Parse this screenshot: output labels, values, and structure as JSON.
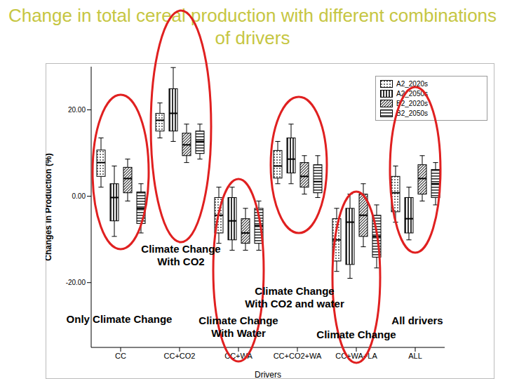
{
  "chart_data": {
    "type": "boxplot",
    "title": "Change in total cereal production with different combinations of drivers",
    "x_label": "Drivers",
    "y_label": "Changes in Production (%)",
    "categories": [
      "CC",
      "CC+CO2",
      "CC+WA",
      "CC+CO2+WA",
      "CC+WA+LA",
      "ALL"
    ],
    "ylim": [
      -35,
      30
    ],
    "yticks": [
      {
        "value": -20,
        "label": "-20.00"
      },
      {
        "value": 0,
        "label": "0.00"
      },
      {
        "value": 20,
        "label": "20.00"
      }
    ],
    "legend": "upper right",
    "annotations": [
      [
        "Only Climate Change"
      ],
      [
        "Climate Change",
        "With CO2"
      ],
      [
        "Climate Change",
        "With Water"
      ],
      [
        "Climate Change",
        "With CO2 and water"
      ],
      [
        "Climate Change"
      ],
      [
        "All drivers"
      ]
    ],
    "series": [
      {
        "name": "A2_2020s",
        "color": "#333333",
        "low": [
          2.1,
          13.5,
          -10.9,
          2.9,
          -17.4,
          -6.0
        ],
        "q1": [
          4.6,
          15.1,
          -8.5,
          4.2,
          -15.0,
          -3.6
        ],
        "median": [
          7.8,
          17.6,
          -4.4,
          7.0,
          -10.1,
          0.8
        ],
        "q3": [
          10.7,
          19.2,
          -0.3,
          10.6,
          -5.2,
          4.6
        ],
        "high": [
          13.5,
          21.6,
          2.1,
          12.7,
          -2.8,
          7.0
        ]
      },
      {
        "name": "A2_2050s",
        "color": "#333333",
        "low": [
          -9.3,
          12.7,
          -12.5,
          2.9,
          -19.0,
          -10.1
        ],
        "q1": [
          -5.7,
          15.1,
          -10.1,
          5.4,
          -15.8,
          -8.5
        ],
        "median": [
          -0.3,
          19.2,
          -5.7,
          8.6,
          -6.0,
          -5.2
        ],
        "q3": [
          2.9,
          24.9,
          -0.3,
          13.5,
          -2.8,
          -0.3
        ],
        "high": [
          7.0,
          29.8,
          2.1,
          16.7,
          0.5,
          2.1
        ]
      },
      {
        "name": "B2_2020s",
        "color": "#333333",
        "low": [
          -1.1,
          7.8,
          -12.5,
          0.5,
          -11.7,
          -1.1
        ],
        "q1": [
          0.8,
          9.4,
          -10.9,
          2.1,
          -9.3,
          0.5
        ],
        "median": [
          4.1,
          11.9,
          -8.5,
          4.6,
          -4.4,
          4.1
        ],
        "q3": [
          6.7,
          14.6,
          -5.2,
          7.8,
          0.5,
          7.3
        ],
        "high": [
          8.6,
          16.7,
          -2.8,
          9.4,
          2.9,
          9.4
        ]
      },
      {
        "name": "B2_2050s",
        "color": "#333333",
        "low": [
          -8.5,
          8.6,
          -12.5,
          -0.3,
          -16.6,
          -2.0
        ],
        "q1": [
          -6.3,
          9.9,
          -10.9,
          0.8,
          -14.1,
          -0.3
        ],
        "median": [
          -2.8,
          12.7,
          -6.8,
          3.4,
          -9.3,
          2.9
        ],
        "q3": [
          1.0,
          15.1,
          -2.8,
          7.3,
          -4.4,
          6.2
        ],
        "high": [
          2.9,
          16.7,
          -1.1,
          9.4,
          -2.0,
          7.8
        ]
      }
    ]
  }
}
